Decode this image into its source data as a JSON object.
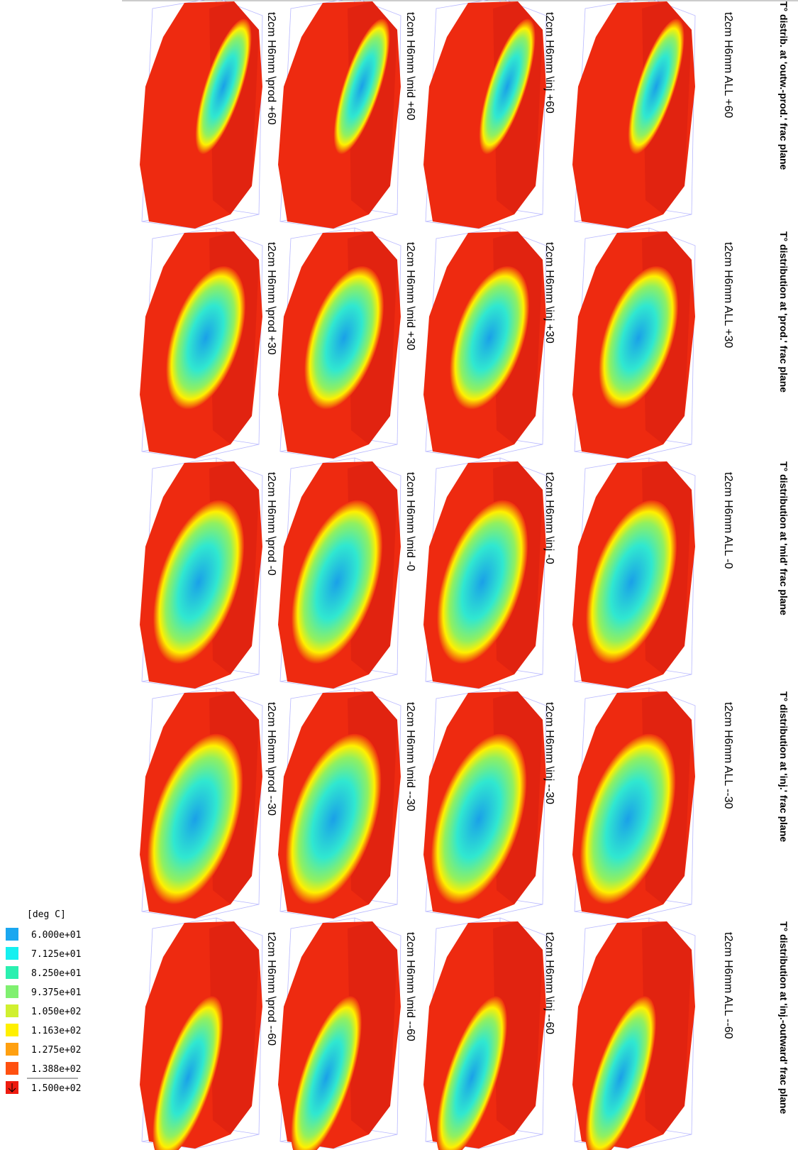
{
  "legend": {
    "title": "[deg C]",
    "items": [
      {
        "label": "6.000e+01",
        "color": "#1aa7f0"
      },
      {
        "label": "7.125e+01",
        "color": "#15f0f0"
      },
      {
        "label": "8.250e+01",
        "color": "#2af0b0"
      },
      {
        "label": "9.375e+01",
        "color": "#80f070"
      },
      {
        "label": "1.050e+02",
        "color": "#d0f030"
      },
      {
        "label": "1.163e+02",
        "color": "#fff000"
      },
      {
        "label": "1.275e+02",
        "color": "#ffa010"
      },
      {
        "label": "1.388e+02",
        "color": "#ff5010"
      },
      {
        "label": "1.500e+02",
        "color": "#ee1c10"
      }
    ]
  },
  "rows": [
    {
      "label": "T° distrib. at 'outw.-prod.' frac plane",
      "panels": [
        "t2cm H6mm \\prod +60",
        "t2cm H6mm \\mid +60",
        "t2cm H6mm \\inj +60",
        "t2cm H6mm ALL +60"
      ]
    },
    {
      "label": "T° distribution at 'prod.' frac plane",
      "panels": [
        "t2cm H6mm \\prod +30",
        "t2cm H6mm \\mid +30",
        "t2cm H6mm \\inj +30",
        "t2cm H6mm ALL +30"
      ]
    },
    {
      "label": "T° distribution at 'mid' frac plane",
      "panels": [
        "t2cm H6mm \\prod -0",
        "t2cm H6mm \\mid -0",
        "t2cm H6mm \\inj -0",
        "t2cm H6mm ALL -0"
      ]
    },
    {
      "label": "T° distribution at 'inj.' frac plane",
      "panels": [
        "t2cm H6mm \\prod --30",
        "t2cm H6mm \\mid --30",
        "t2cm H6mm \\inj --30",
        "t2cm H6mm ALL --30"
      ]
    },
    {
      "label": "T° distribution at 'inj.-outward' frac plane",
      "panels": [
        "t2cm H6mm \\prod --60",
        "t2cm H6mm \\mid --60",
        "t2cm H6mm \\inj --60",
        "t2cm H6mm ALL --60"
      ]
    }
  ]
}
